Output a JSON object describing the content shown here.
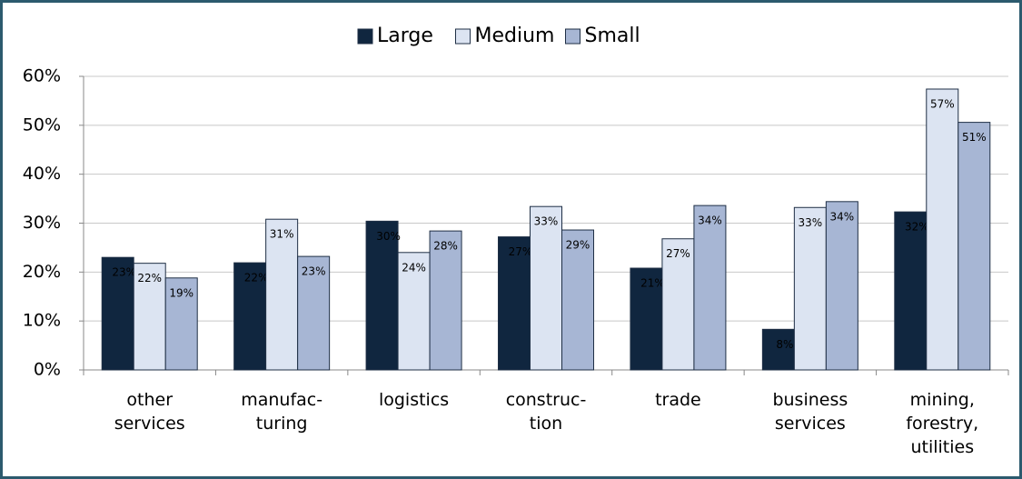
{
  "chart_data": {
    "type": "bar",
    "categories": [
      "other\nservices",
      "manufac-\nturing",
      "logistics",
      "construc-\ntion",
      "trade",
      "business\nservices",
      "mining,\nforestry,\nutilities"
    ],
    "series": [
      {
        "name": "Large",
        "color": "#10263f",
        "values": [
          23,
          21.9,
          30.4,
          27.2,
          20.8,
          8.3,
          32.3
        ],
        "value_labels": [
          "23%",
          "22%",
          "30%",
          "27%",
          "21%",
          "8%",
          "32%"
        ]
      },
      {
        "name": "Medium",
        "color": "#dce4f2",
        "values": [
          21.8,
          30.8,
          24,
          33.4,
          26.8,
          33.2,
          57.4
        ],
        "value_labels": [
          "22%",
          "31%",
          "24%",
          "33%",
          "27%",
          "33%",
          "57%"
        ]
      },
      {
        "name": "Small",
        "color": "#a7b6d4",
        "values": [
          18.8,
          23.2,
          28.4,
          28.6,
          33.6,
          34.4,
          50.6
        ],
        "value_labels": [
          "19%",
          "23%",
          "28%",
          "29%",
          "34%",
          "34%",
          "51%"
        ]
      }
    ],
    "ylim": [
      0,
      60
    ],
    "yticks": [
      {
        "value": 0,
        "label": "0%"
      },
      {
        "value": 10,
        "label": "10%"
      },
      {
        "value": 20,
        "label": "20%"
      },
      {
        "value": 30,
        "label": "30%"
      },
      {
        "value": 40,
        "label": "40%"
      },
      {
        "value": 50,
        "label": "50%"
      },
      {
        "value": 60,
        "label": "60%"
      }
    ],
    "grid": true,
    "legend": "top"
  }
}
